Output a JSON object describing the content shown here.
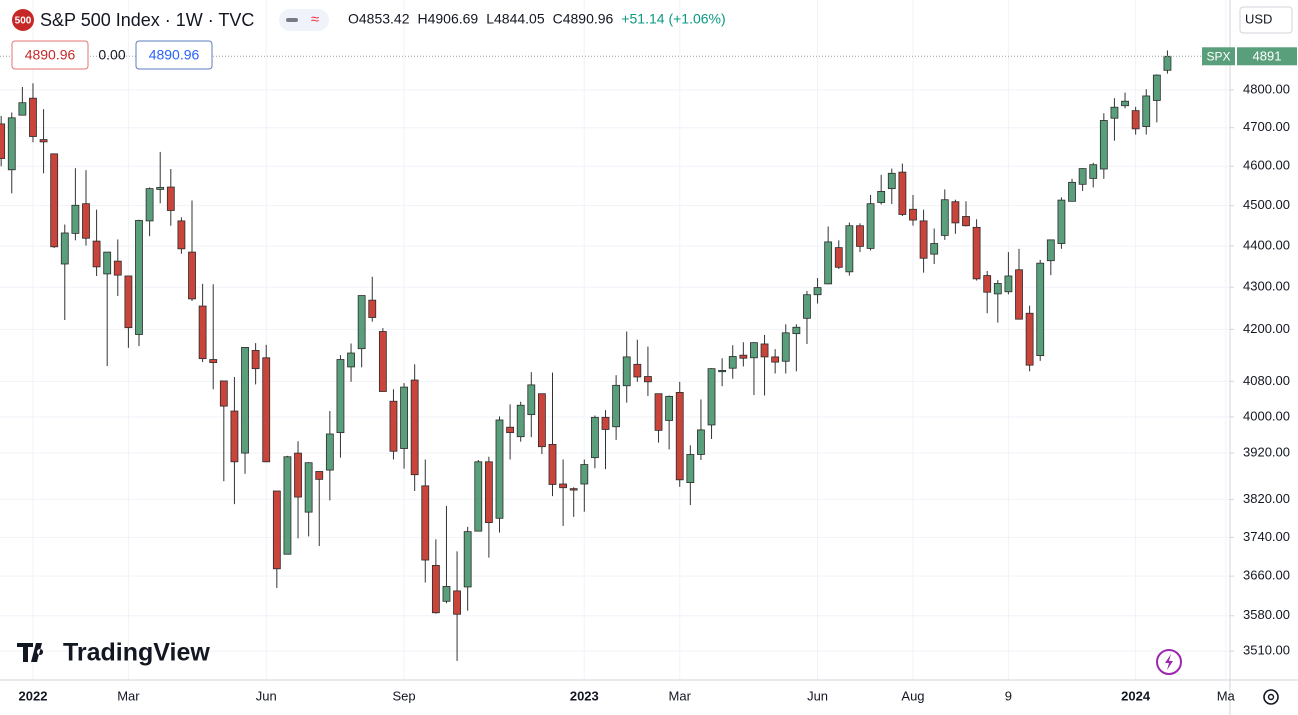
{
  "chart_data": {
    "type": "candlestick",
    "logo": "500",
    "title": "S&P 500 Index · 1W · TVC",
    "ohlc_header": [
      "O4853.42",
      "H4906.69",
      "L4844.05",
      "C4890.96",
      "+51.14 (+1.06%)"
    ],
    "quote": [
      "4890.96",
      "0.00",
      "4890.96"
    ],
    "currency": "USD",
    "symbol": "SPX",
    "watermark": "TradingView",
    "log_scale": true,
    "grid": true,
    "up_color": "#5a9f7b",
    "down_color": "#c9453b",
    "ylim": [
      3454,
      5047
    ],
    "yticks": [
      {
        "value": 3510,
        "label": "3510.00"
      },
      {
        "value": 3580,
        "label": "3580.00"
      },
      {
        "value": 3660,
        "label": "3660.00"
      },
      {
        "value": 3740,
        "label": "3740.00"
      },
      {
        "value": 3820,
        "label": "3820.00"
      },
      {
        "value": 3920,
        "label": "3920.00"
      },
      {
        "value": 4000,
        "label": "4000.00"
      },
      {
        "value": 4080,
        "label": "4080.00"
      },
      {
        "value": 4200,
        "label": "4200.00"
      },
      {
        "value": 4300,
        "label": "4300.00"
      },
      {
        "value": 4400,
        "label": "4400.00"
      },
      {
        "value": 4500,
        "label": "4500.00"
      },
      {
        "value": 4600,
        "label": "4600.00"
      },
      {
        "value": 4700,
        "label": "4700.00"
      },
      {
        "value": 4800,
        "label": "4800.00"
      }
    ],
    "xlim": [
      -0.11,
      115.9
    ],
    "xticks": [
      {
        "value": 3,
        "label": "2022"
      },
      {
        "value": 12,
        "label": "Mar"
      },
      {
        "value": 25,
        "label": "Jun"
      },
      {
        "value": 38,
        "label": "Sep"
      },
      {
        "value": 55,
        "label": "2023"
      },
      {
        "value": 64,
        "label": "Mar"
      },
      {
        "value": 77,
        "label": "Jun"
      },
      {
        "value": 86,
        "label": "Aug"
      },
      {
        "value": 95,
        "label": "9"
      },
      {
        "value": 107,
        "label": "2024"
      },
      {
        "value": 115.5,
        "label": "Ma"
      }
    ],
    "series": {
      "open": [
        4710,
        4591,
        4733,
        4778,
        4669,
        4632,
        4356,
        4431,
        4505,
        4412,
        4332,
        4363,
        4327,
        4188,
        4462,
        4541,
        4547,
        4462,
        4385,
        4255,
        4130,
        4081,
        4013,
        3920,
        4151,
        4134,
        3838,
        3705,
        3920,
        3793,
        3880,
        3883,
        3965,
        4113,
        4155,
        4269,
        4195,
        4035,
        3930,
        4083,
        3849,
        3682,
        3609,
        3630,
        3638,
        3753,
        3901,
        3780,
        3977,
        3956,
        4005,
        4052,
        3939,
        3853,
        3843,
        3853,
        3910,
        3999,
        3978,
        4070,
        4119,
        4091,
        4052,
        3992,
        4055,
        3856,
        3917,
        3982,
        4102,
        4110,
        4140,
        4134,
        4166,
        4136,
        4126,
        4190,
        4226,
        4282,
        4308,
        4396,
        4337,
        4450,
        4394,
        4508,
        4543,
        4585,
        4491,
        4462,
        4380,
        4426,
        4510,
        4473,
        4446,
        4328,
        4284,
        4289,
        4342,
        4238,
        4139,
        4364,
        4406,
        4511,
        4554,
        4569,
        4593,
        4725,
        4758,
        4745,
        4703,
        4772,
        4853
      ],
      "high": [
        4731,
        4740,
        4808,
        4818,
        4749,
        4632,
        4453,
        4595,
        4590,
        4490,
        4385,
        4416,
        4327,
        4465,
        4546,
        4637,
        4593,
        4471,
        4513,
        4308,
        4307,
        4081,
        4090,
        4158,
        4168,
        4164,
        3838,
        3914,
        3946,
        3900,
        3880,
        4013,
        4140,
        4167,
        4280,
        4325,
        4203,
        4062,
        4076,
        4119,
        3906,
        3736,
        3806,
        3711,
        3762,
        3905,
        3912,
        4001,
        4028,
        4034,
        4101,
        4052,
        4100,
        3906,
        3846,
        3906,
        4003,
        4015,
        4094,
        4195,
        4176,
        4160,
        4052,
        4048,
        4079,
        3937,
        4039,
        4110,
        4133,
        4163,
        4170,
        4170,
        4187,
        4154,
        4212,
        4212,
        4291,
        4322,
        4448,
        4414,
        4458,
        4456,
        4527,
        4578,
        4594,
        4607,
        4527,
        4490,
        4443,
        4541,
        4515,
        4511,
        4466,
        4339,
        4317,
        4385,
        4393,
        4256,
        4366,
        4415,
        4521,
        4568,
        4595,
        4609,
        4738,
        4778,
        4793,
        4755,
        4802,
        4842,
        4907
      ],
      "low": [
        4600,
        4531,
        4733,
        4662,
        4582,
        4395,
        4222,
        4414,
        4401,
        4327,
        4115,
        4279,
        4157,
        4161,
        4424,
        4506,
        4450,
        4381,
        4267,
        4124,
        4062,
        3859,
        3810,
        3875,
        4073,
        3900,
        3636,
        3705,
        3738,
        3742,
        3722,
        3818,
        3910,
        4079,
        4112,
        4218,
        4058,
        3906,
        3886,
        3838,
        3647,
        3584,
        3605,
        3491,
        3590,
        3753,
        3698,
        3750,
        3906,
        3945,
        3955,
        3918,
        3827,
        3764,
        3783,
        3794,
        3887,
        3885,
        3949,
        4032,
        4079,
        4047,
        3943,
        3928,
        3847,
        3808,
        3905,
        3951,
        4069,
        4086,
        4114,
        4049,
        4048,
        4098,
        4098,
        4103,
        4166,
        4261,
        4307,
        4344,
        4328,
        4385,
        4389,
        4503,
        4504,
        4474,
        4450,
        4335,
        4356,
        4415,
        4430,
        4448,
        4316,
        4238,
        4216,
        4283,
        4223,
        4103,
        4127,
        4329,
        4393,
        4511,
        4537,
        4546,
        4568,
        4666,
        4751,
        4682,
        4682,
        4714,
        4844
      ],
      "close": [
        4620,
        4726,
        4766,
        4677,
        4663,
        4398,
        4432,
        4501,
        4419,
        4349,
        4385,
        4329,
        4204,
        4463,
        4543,
        4546,
        4488,
        4393,
        4272,
        4132,
        4123,
        4024,
        3901,
        4158,
        4109,
        3901,
        3675,
        3912,
        3825,
        3899,
        3863,
        3962,
        4130,
        4145,
        4280,
        4228,
        4057,
        3924,
        4067,
        3873,
        3693,
        3586,
        3639,
        3583,
        3752,
        3901,
        3771,
        3993,
        3965,
        4026,
        4072,
        3934,
        3852,
        3845,
        3840,
        3895,
        3999,
        3972,
        4071,
        4136,
        4090,
        4079,
        3970,
        4046,
        3862,
        3917,
        3971,
        4109,
        4105,
        4137,
        4133,
        4169,
        4136,
        4124,
        4192,
        4205,
        4282,
        4299,
        4410,
        4348,
        4450,
        4399,
        4505,
        4536,
        4582,
        4478,
        4464,
        4370,
        4406,
        4515,
        4457,
        4450,
        4320,
        4288,
        4309,
        4327,
        4224,
        4117,
        4358,
        4415,
        4514,
        4559,
        4594,
        4604,
        4719,
        4754,
        4770,
        4697,
        4784,
        4840,
        4891
      ]
    }
  }
}
